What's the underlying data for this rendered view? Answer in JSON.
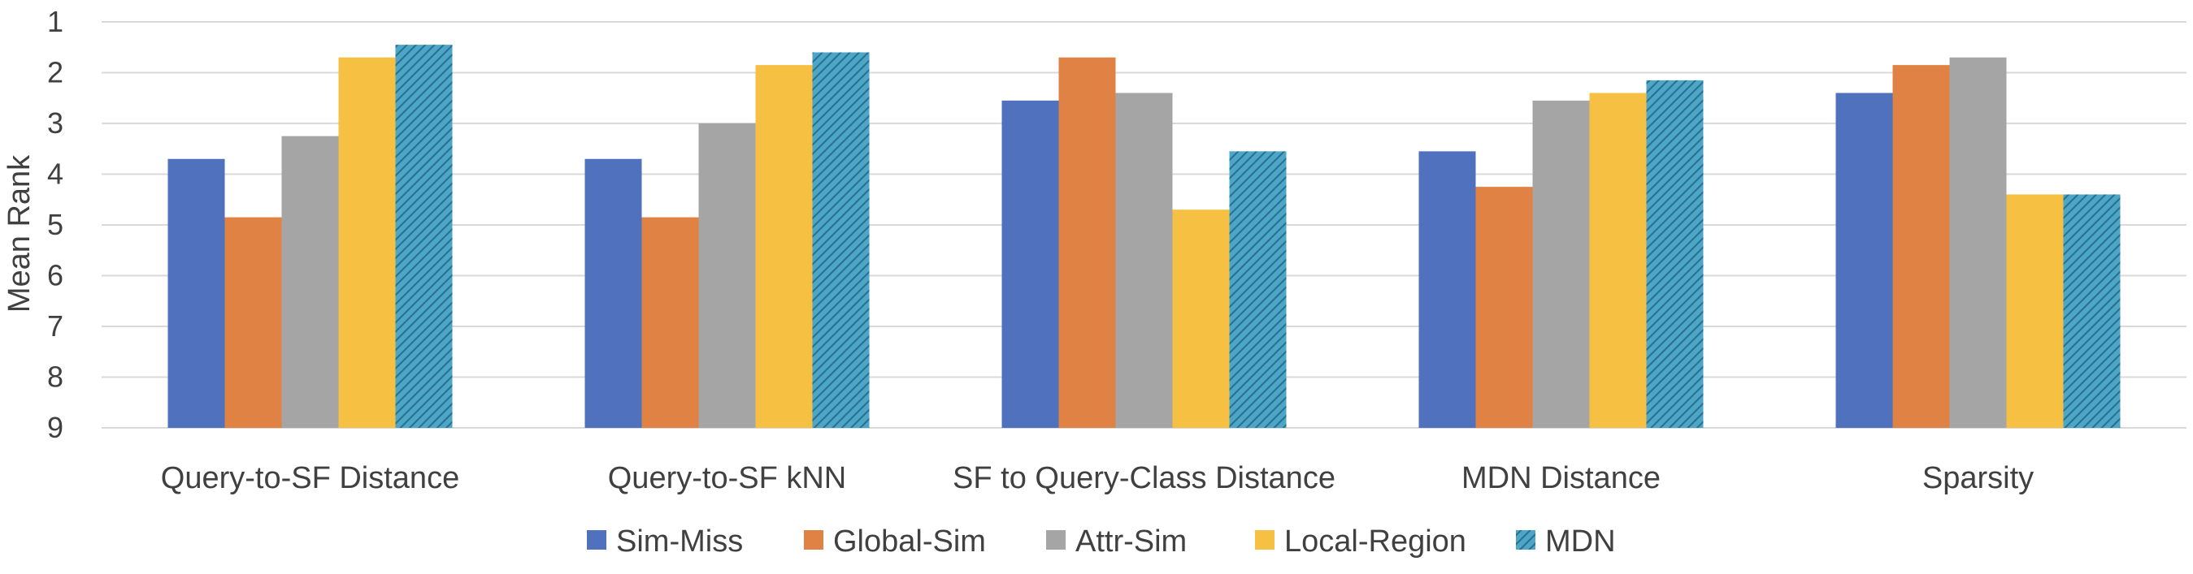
{
  "chart_data": {
    "type": "bar",
    "ylabel": "Mean Rank",
    "xlabel": "",
    "ylim": [
      1,
      9
    ],
    "y_axis_inverted": true,
    "yticks": [
      "1",
      "2",
      "3",
      "4",
      "5",
      "6",
      "7",
      "8",
      "9"
    ],
    "grid": true,
    "legend_position": "bottom",
    "categories": [
      "Query-to-SF Distance",
      "Query-to-SF kNN",
      "SF to Query-Class Distance",
      "MDN Distance",
      "Sparsity"
    ],
    "series": [
      {
        "name": "Sim-Miss",
        "color": "#4f71be",
        "pattern": "solid",
        "values": [
          3.7,
          3.7,
          2.55,
          3.55,
          2.4
        ]
      },
      {
        "name": "Global-Sim",
        "color": "#df8244",
        "pattern": "solid",
        "values": [
          4.85,
          4.85,
          1.7,
          4.25,
          1.85
        ]
      },
      {
        "name": "Attr-Sim",
        "color": "#a5a5a5",
        "pattern": "solid",
        "values": [
          3.25,
          3.0,
          2.4,
          2.55,
          1.7
        ]
      },
      {
        "name": "Local-Region",
        "color": "#f6c142",
        "pattern": "solid",
        "values": [
          1.7,
          1.85,
          4.7,
          2.4,
          4.4
        ]
      },
      {
        "name": "MDN",
        "color": "#4ba6c8",
        "pattern": "hatched",
        "values": [
          1.45,
          1.6,
          3.55,
          2.15,
          4.4
        ]
      }
    ]
  }
}
